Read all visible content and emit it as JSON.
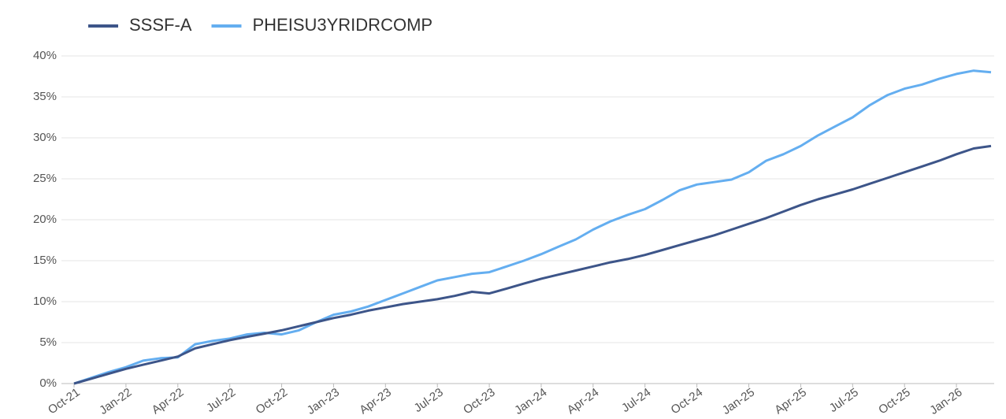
{
  "chart_data": {
    "type": "line",
    "categories": [
      "Oct-21",
      null,
      null,
      "Jan-22",
      null,
      null,
      "Apr-22",
      null,
      null,
      "Jul-22",
      null,
      null,
      "Oct-22",
      null,
      null,
      "Jan-23",
      null,
      null,
      "Apr-23",
      null,
      null,
      "Jul-23",
      null,
      null,
      "Oct-23",
      null,
      null,
      "Jan-24",
      null,
      null,
      "Apr-24",
      null,
      null,
      "Jul-24",
      null,
      null,
      "Oct-24",
      null,
      null,
      "Jan-25",
      null,
      null,
      "Apr-25",
      null,
      null,
      "Jul-25",
      null,
      null,
      "Oct-25",
      null,
      null,
      "Jan-26",
      null,
      null
    ],
    "series": [
      {
        "name": "SSSF-A",
        "color": "#3d5589",
        "values": [
          0,
          0.6,
          1.2,
          1.8,
          2.3,
          2.8,
          3.3,
          4.3,
          4.8,
          5.3,
          5.7,
          6.1,
          6.5,
          7.0,
          7.5,
          8.0,
          8.4,
          8.9,
          9.3,
          9.7,
          10.0,
          10.3,
          10.7,
          11.2,
          11.0,
          11.6,
          12.2,
          12.8,
          13.3,
          13.8,
          14.3,
          14.8,
          15.2,
          15.7,
          16.3,
          16.9,
          17.5,
          18.1,
          18.8,
          19.5,
          20.2,
          21.0,
          21.8,
          22.5,
          23.1,
          23.7,
          24.4,
          25.1,
          25.8,
          26.5,
          27.2,
          28.0,
          28.7,
          29.0
        ]
      },
      {
        "name": "PHEISU3YRIDRCOMP",
        "color": "#64aef0",
        "values": [
          0,
          0.7,
          1.4,
          2.0,
          2.8,
          3.1,
          3.2,
          4.8,
          5.2,
          5.5,
          6.0,
          6.2,
          6.0,
          6.5,
          7.5,
          8.4,
          8.8,
          9.4,
          10.2,
          11.0,
          11.8,
          12.6,
          13.0,
          13.4,
          13.6,
          14.3,
          15.0,
          15.8,
          16.7,
          17.6,
          18.8,
          19.8,
          20.6,
          21.3,
          22.4,
          23.6,
          24.3,
          24.6,
          24.9,
          25.8,
          27.2,
          28.0,
          29.0,
          30.3,
          31.4,
          32.5,
          34.0,
          35.2,
          36.0,
          36.5,
          37.2,
          37.8,
          38.2,
          38.0
        ]
      }
    ],
    "ylim": [
      0,
      40
    ],
    "yticks": [
      {
        "value": 0,
        "label": "0%"
      },
      {
        "value": 5,
        "label": "5%"
      },
      {
        "value": 10,
        "label": "10%"
      },
      {
        "value": 15,
        "label": "15%"
      },
      {
        "value": 20,
        "label": "20%"
      },
      {
        "value": 25,
        "label": "25%"
      },
      {
        "value": 30,
        "label": "30%"
      },
      {
        "value": 35,
        "label": "35%"
      },
      {
        "value": 40,
        "label": "40%"
      }
    ],
    "grid": true
  }
}
